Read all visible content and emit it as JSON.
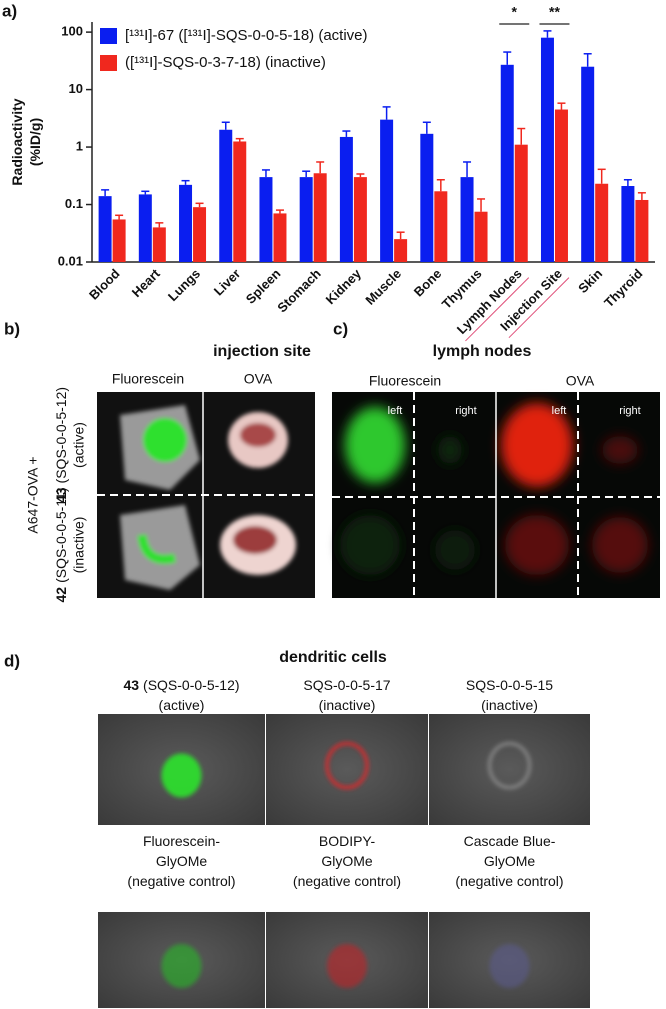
{
  "chart_data": {
    "type": "bar",
    "panel_label": "a)",
    "ylabel": [
      "Radioactivity",
      "(%ID/g)"
    ],
    "categories": [
      "Blood",
      "Heart",
      "Lungs",
      "Liver",
      "Spleen",
      "Stomach",
      "Kidney",
      "Muscle",
      "Bone",
      "Thymus",
      "Lymph Nodes",
      "Injection Site",
      "Skin",
      "Thyroid"
    ],
    "series": [
      {
        "name": "[¹³¹I]-67 ([¹³¹I]-SQS-0-0-5-18) (active)",
        "color": "#0a1ef0",
        "values": [
          0.14,
          0.15,
          0.22,
          2.0,
          0.3,
          0.3,
          1.5,
          3.0,
          1.7,
          0.3,
          27,
          80,
          25,
          0.21
        ],
        "errors": [
          0.04,
          0.02,
          0.04,
          0.7,
          0.1,
          0.08,
          0.4,
          2.0,
          1.0,
          0.25,
          18,
          25,
          17,
          0.06
        ]
      },
      {
        "name": "([¹³¹I]-SQS-0-3-7-18) (inactive)",
        "color": "#f0281e",
        "values": [
          0.055,
          0.04,
          0.09,
          1.25,
          0.07,
          0.35,
          0.3,
          0.025,
          0.17,
          0.075,
          1.1,
          4.5,
          0.23,
          0.12
        ],
        "errors": [
          0.01,
          0.008,
          0.015,
          0.15,
          0.01,
          0.2,
          0.04,
          0.008,
          0.1,
          0.05,
          1.0,
          1.3,
          0.18,
          0.04
        ]
      }
    ],
    "ylim": [
      0.01,
      150
    ],
    "yticks": [
      0.01,
      0.1,
      1,
      10,
      100
    ],
    "log": true,
    "annotations": [
      {
        "text": "*",
        "category": "Lymph Nodes"
      },
      {
        "text": "**",
        "category": "Injection Site"
      }
    ]
  },
  "panel_b": {
    "label": "b)",
    "title": "injection site",
    "columns": [
      "Fluorescein",
      "OVA"
    ],
    "side_label": "A647-OVA +",
    "rows": [
      {
        "compound": "43",
        "lines": [
          "(SQS-0-0-5-12)",
          "(active)"
        ]
      },
      {
        "compound": "42",
        "lines": [
          "(SQS-0-0-5-11)",
          "(inactive)"
        ]
      }
    ]
  },
  "panel_c": {
    "label": "c)",
    "title": "lymph nodes",
    "columns": [
      "Fluorescein",
      "OVA"
    ],
    "sides": [
      "left",
      "right",
      "left",
      "right"
    ]
  },
  "panel_d": {
    "label": "d)",
    "title": "dendritic cells",
    "cells": [
      {
        "compound": "43",
        "lines": [
          "(SQS-0-0-5-12)",
          "(active)"
        ]
      },
      {
        "lines": [
          "SQS-0-0-5-17",
          "(inactive)"
        ]
      },
      {
        "lines": [
          "SQS-0-0-5-15",
          "(inactive)"
        ]
      },
      {
        "lines": [
          "Fluorescein-",
          "GlyOMe",
          "(negative control)"
        ]
      },
      {
        "lines": [
          "BODIPY-",
          "GlyOMe",
          "(negative control)"
        ]
      },
      {
        "lines": [
          "Cascade Blue-",
          "GlyOMe",
          "(negative control)"
        ]
      }
    ]
  }
}
